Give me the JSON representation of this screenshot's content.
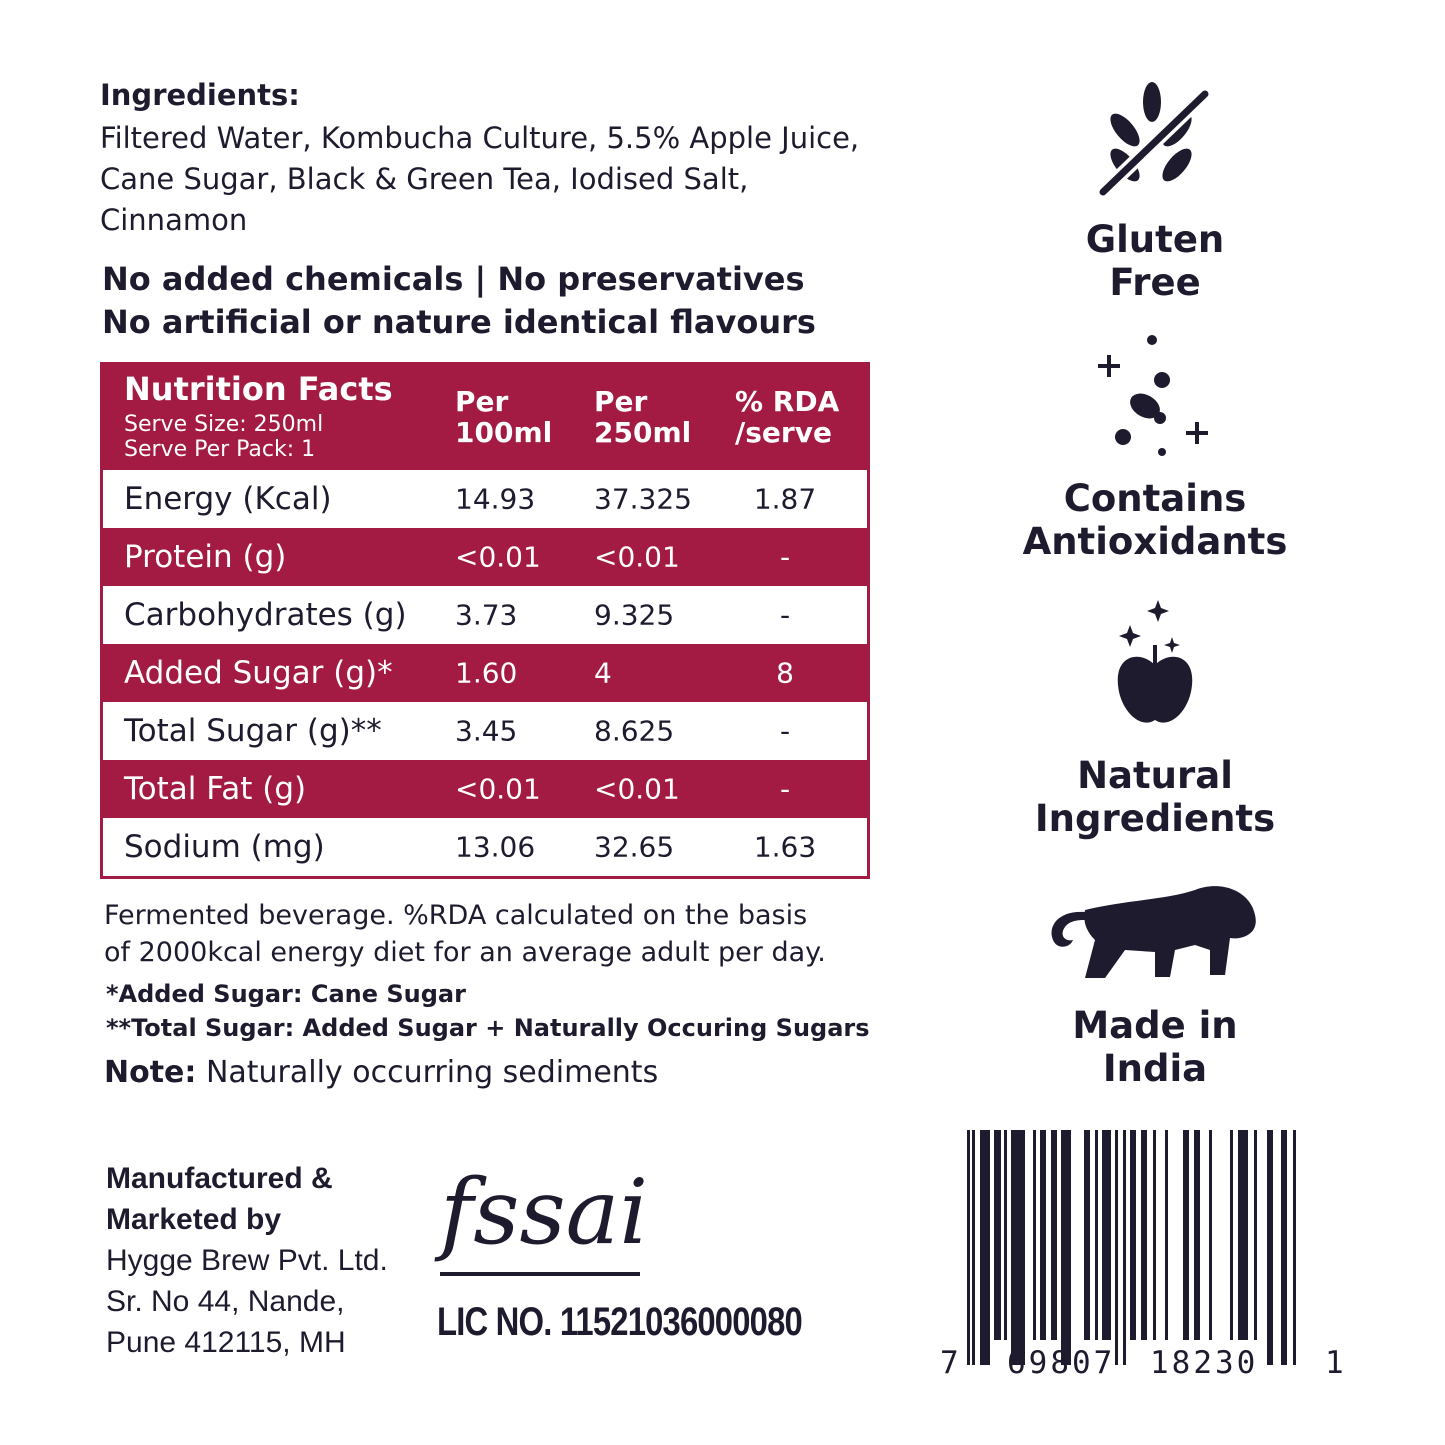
{
  "ingredients": {
    "title": "Ingredients:",
    "text": "Filtered Water, Kombucha Culture, 5.5% Apple Juice, Cane Sugar, Black & Green Tea, Iodised Salt, Cinnamon"
  },
  "claims": [
    "No added chemicals | No preservatives",
    "No artificial or nature identical flavours"
  ],
  "nutrition": {
    "title": "Nutrition Facts",
    "serve_size": "Serve Size: 250ml",
    "serve_per_pack": "Serve Per Pack: 1",
    "columns": [
      [
        "Per",
        "100ml"
      ],
      [
        "Per",
        "250ml"
      ],
      [
        "% RDA",
        "/serve"
      ]
    ],
    "rows": [
      [
        "Energy (Kcal)",
        "14.93",
        "37.325",
        "1.87"
      ],
      [
        "Protein (g)",
        "<0.01",
        "<0.01",
        "-"
      ],
      [
        "Carbohydrates (g)",
        "3.73",
        "9.325",
        "-"
      ],
      [
        "Added Sugar (g)*",
        "1.60",
        "4",
        "8"
      ],
      [
        "Total Sugar (g)**",
        "3.45",
        "8.625",
        "-"
      ],
      [
        "Total Fat (g)",
        "<0.01",
        "<0.01",
        "-"
      ],
      [
        "Sodium (mg)",
        "13.06",
        "32.65",
        "1.63"
      ]
    ]
  },
  "footnotes": {
    "line1": "Fermented beverage. %RDA calculated on the basis",
    "line2": "of 2000kcal energy diet for an average adult per day.",
    "added": "*Added Sugar: Cane Sugar",
    "total": "**Total Sugar: Added Sugar + Naturally Occuring Sugars",
    "note_label": "Note:",
    "note_text": " Naturally occurring sediments"
  },
  "manufacturer": [
    "Manufactured &",
    "Marketed by",
    "Hygge Brew Pvt. Ltd.",
    "Sr. No 44, Nande,",
    "Pune 412115, MH"
  ],
  "fssai": {
    "logo": "fssai",
    "license": "LIC NO. 11521036000080"
  },
  "badges": [
    {
      "icon": "gluten-free-icon",
      "lines": [
        "Gluten",
        "Free"
      ]
    },
    {
      "icon": "antioxidants-icon",
      "lines": [
        "Contains",
        "Antioxidants"
      ]
    },
    {
      "icon": "apple-icon",
      "lines": [
        "Natural",
        "Ingredients"
      ]
    },
    {
      "icon": "lion-icon",
      "lines": [
        "Made in",
        "India"
      ]
    }
  ],
  "barcode": {
    "first": "7",
    "left": "69807",
    "right": "18230",
    "last": "1"
  },
  "colors": {
    "brand": "#a31a42",
    "text": "#1e1b2e"
  }
}
